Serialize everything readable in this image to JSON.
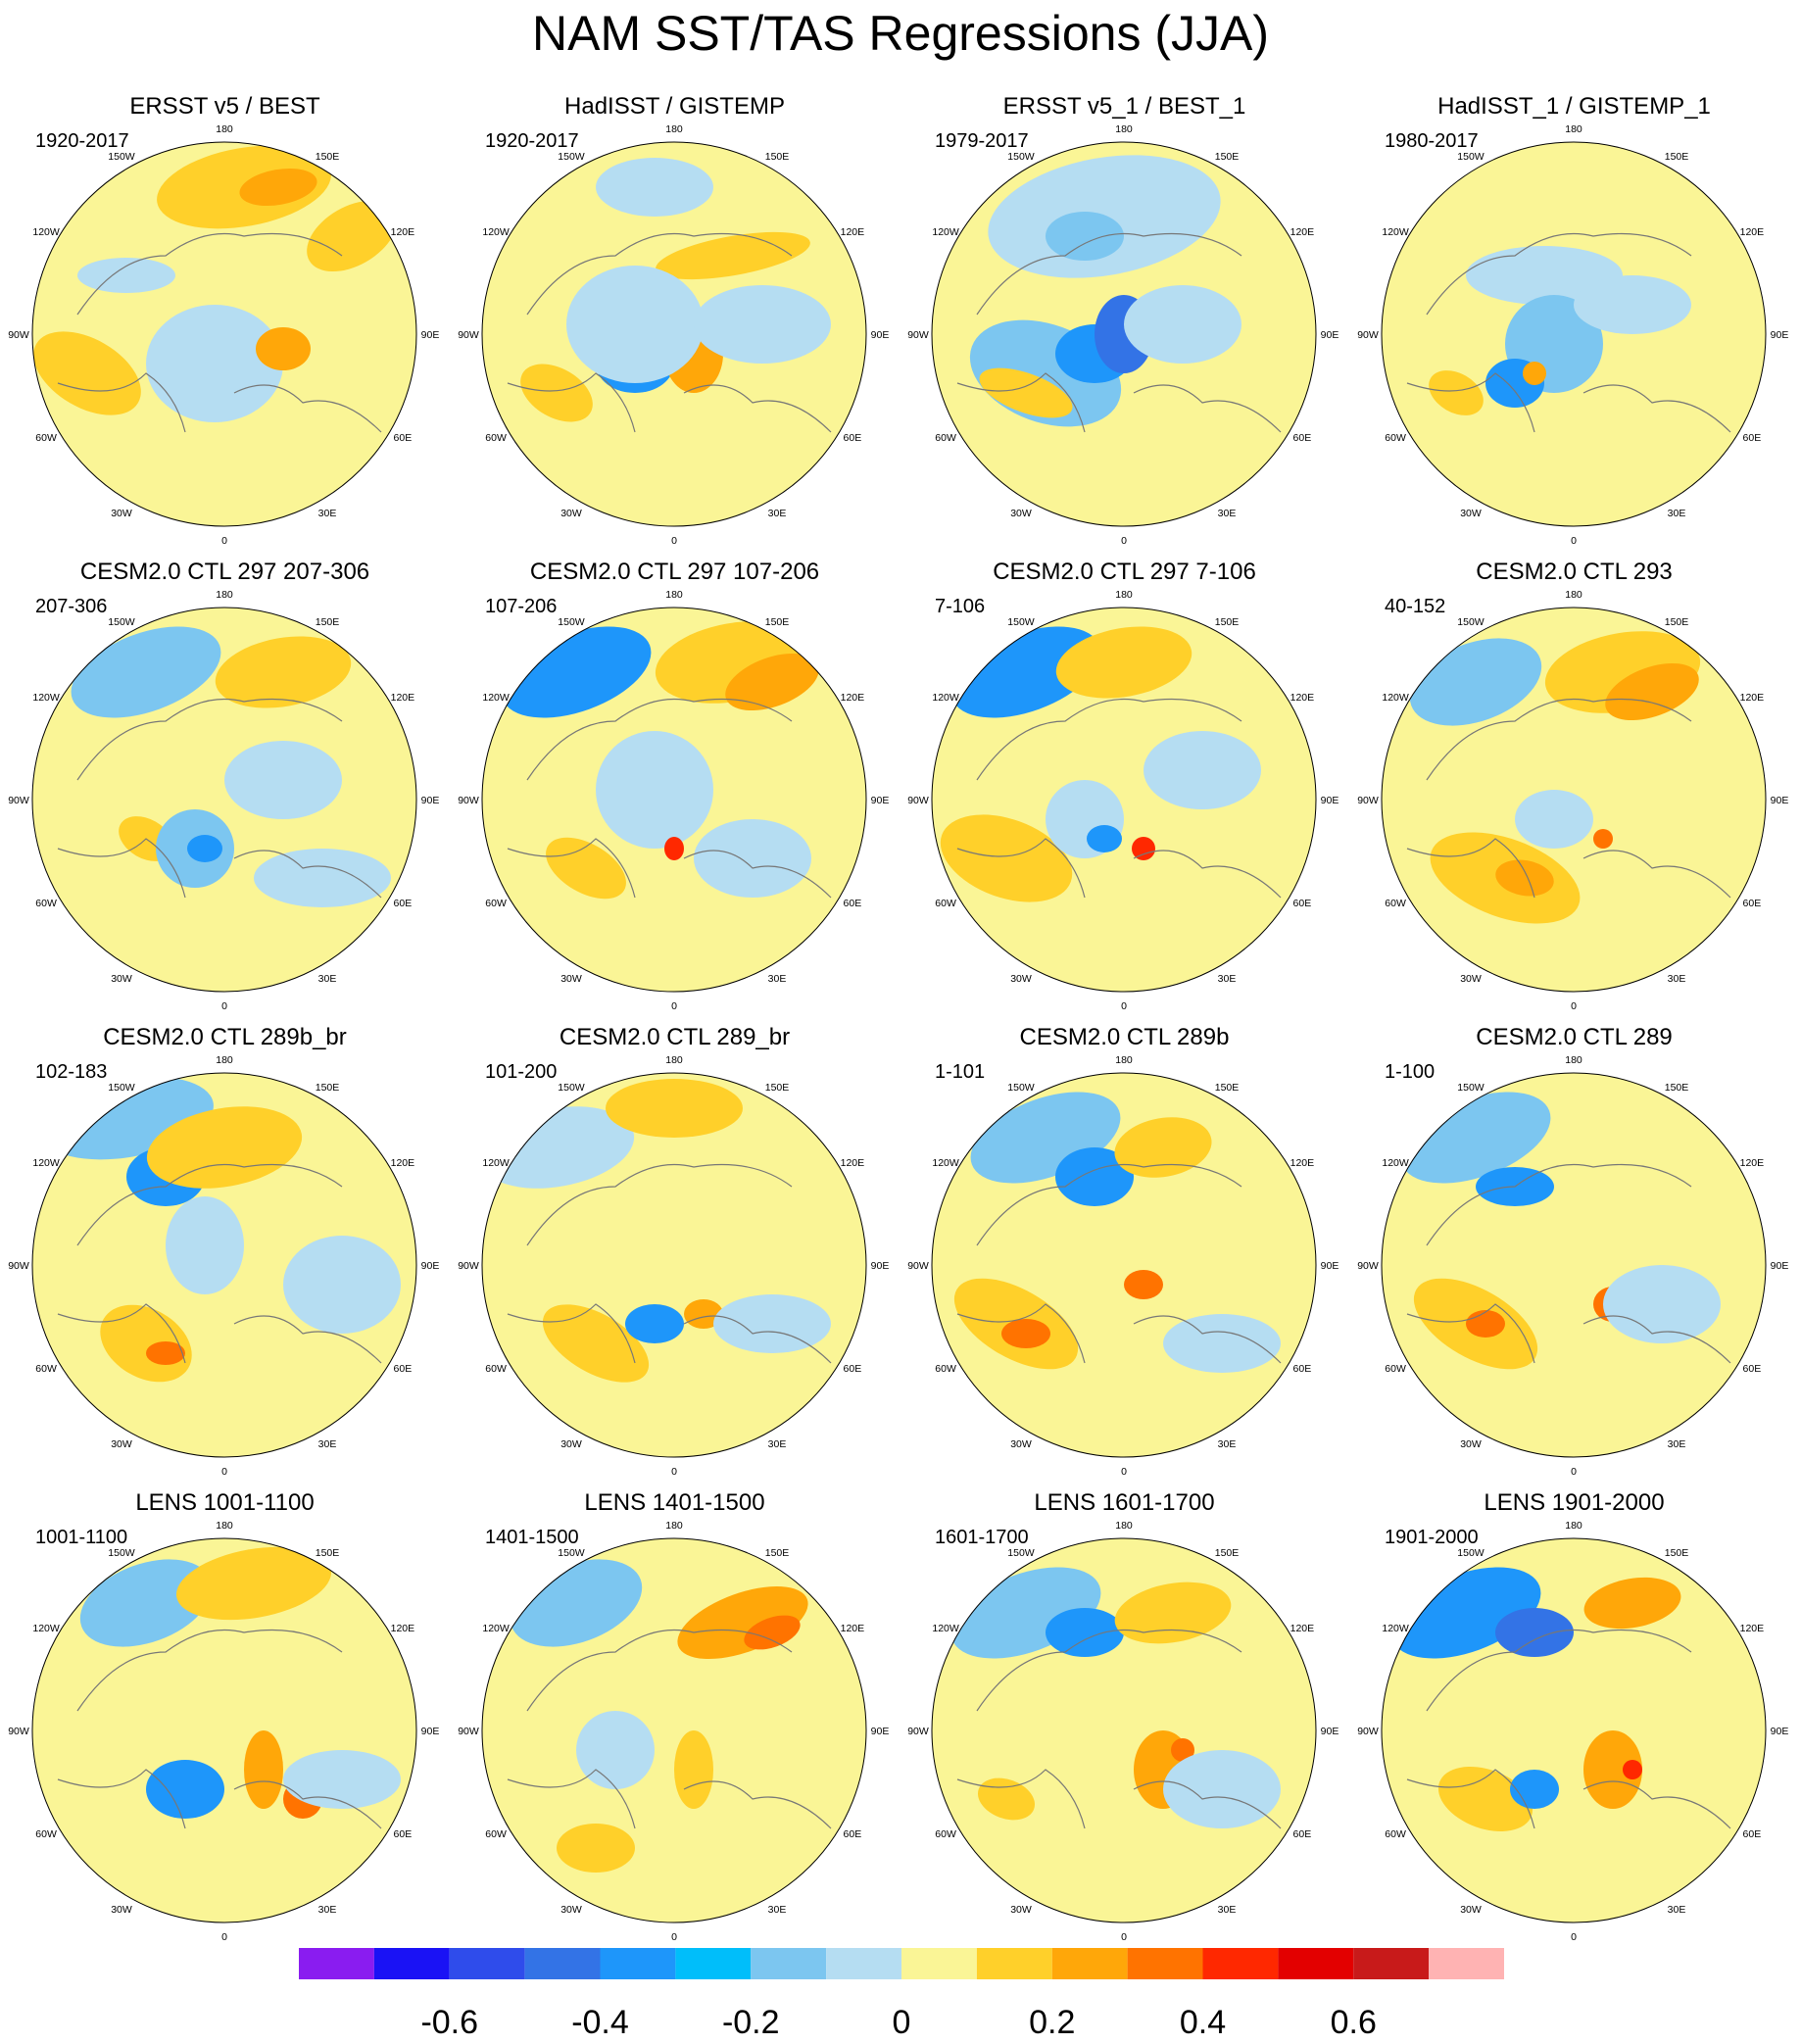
{
  "figure": {
    "title": "NAM SST/TAS Regressions (JJA)"
  },
  "longitude_labels": [
    "180",
    "150E",
    "120E",
    "90E",
    "60E",
    "30E",
    "0",
    "30W",
    "60W",
    "90W",
    "120W",
    "150W"
  ],
  "colorbar": {
    "colors": [
      "#8A1CF0",
      "#1A12F5",
      "#2F4CEB",
      "#3373E6",
      "#1E96FA",
      "#00BEFA",
      "#7CC6F0",
      "#B5DDF2",
      "#FAF596",
      "#FFD02A",
      "#FFA709",
      "#FF7300",
      "#FF2800",
      "#E30000",
      "#C81A1A",
      "#FFB3B3"
    ],
    "tick_labels": [
      "-0.6",
      "-0.4",
      "-0.2",
      "0",
      "0.2",
      "0.4",
      "0.6"
    ],
    "tick_values": [
      -0.6,
      -0.4,
      -0.2,
      0,
      0.2,
      0.4,
      0.6
    ],
    "levels": [
      -0.7,
      -0.6,
      -0.5,
      -0.4,
      -0.3,
      -0.2,
      -0.1,
      0,
      0.1,
      0.2,
      0.3,
      0.4,
      0.5,
      0.6,
      0.7
    ]
  },
  "chart_data": [
    {
      "type": "heatmap",
      "title": "ERSST v5 / BEST",
      "period": "1920-2017"
    },
    {
      "type": "heatmap",
      "title": "HadISST / GISTEMP",
      "period": "1920-2017"
    },
    {
      "type": "heatmap",
      "title": "ERSST v5_1 / BEST_1",
      "period": "1979-2017"
    },
    {
      "type": "heatmap",
      "title": "HadISST_1 / GISTEMP_1",
      "period": "1980-2017"
    },
    {
      "type": "heatmap",
      "title": "CESM2.0 CTL 297 207-306",
      "period": "207-306"
    },
    {
      "type": "heatmap",
      "title": "CESM2.0 CTL 297 107-206",
      "period": "107-206"
    },
    {
      "type": "heatmap",
      "title": "CESM2.0 CTL 297 7-106",
      "period": "7-106"
    },
    {
      "type": "heatmap",
      "title": "CESM2.0 CTL 293",
      "period": "40-152"
    },
    {
      "type": "heatmap",
      "title": "CESM2.0 CTL 289b_br",
      "period": "102-183"
    },
    {
      "type": "heatmap",
      "title": "CESM2.0 CTL 289_br",
      "period": "101-200"
    },
    {
      "type": "heatmap",
      "title": "CESM2.0 CTL 289b",
      "period": "1-101"
    },
    {
      "type": "heatmap",
      "title": "CESM2.0 CTL 289",
      "period": "1-100"
    },
    {
      "type": "heatmap",
      "title": "LENS 1001-1100",
      "period": "1001-1100"
    },
    {
      "type": "heatmap",
      "title": "LENS 1401-1500",
      "period": "1401-1500"
    },
    {
      "type": "heatmap",
      "title": "LENS 1601-1700",
      "period": "1601-1700"
    },
    {
      "type": "heatmap",
      "title": "LENS 1901-2000",
      "period": "1901-2000"
    }
  ]
}
